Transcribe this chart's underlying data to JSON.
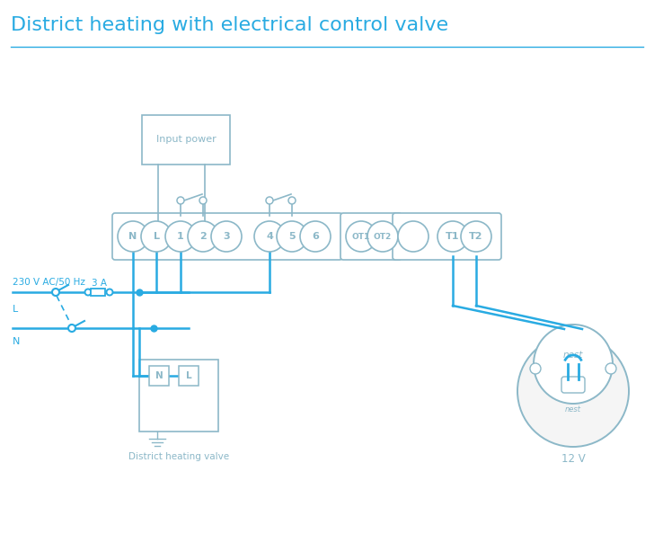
{
  "title": "District heating with electrical control valve",
  "title_color": "#29abe2",
  "title_fontsize": 16,
  "bg_color": "#ffffff",
  "wire_color": "#29abe2",
  "comp_color": "#8cb8c8",
  "text_color": "#8cb8c8",
  "label_230v": "230 V AC/50 Hz",
  "label_L": "L",
  "label_N": "N",
  "label_3A": "3 A",
  "label_input_power": "Input power",
  "label_valve": "District heating valve",
  "label_12v": "12 V",
  "label_nest": "nest",
  "fig_w": 7.28,
  "fig_h": 5.94,
  "dpi": 100
}
